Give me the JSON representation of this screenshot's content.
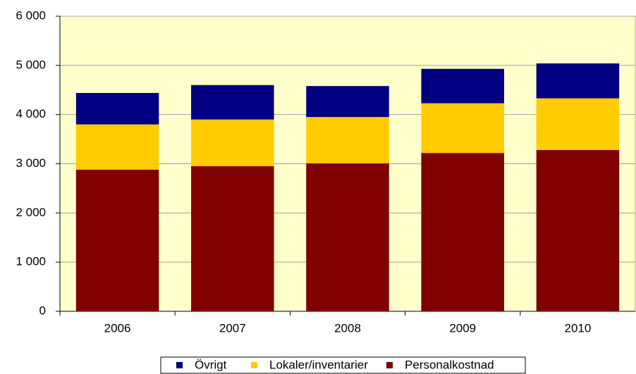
{
  "chart_data": {
    "type": "stacked_bar",
    "categories": [
      "2006",
      "2007",
      "2008",
      "2009",
      "2010"
    ],
    "series": [
      {
        "name": "Personalkostnad",
        "color": "#800000",
        "values": [
          2880,
          2950,
          3010,
          3220,
          3280
        ]
      },
      {
        "name": "Lokaler/inventarier",
        "color": "#ffcc00",
        "values": [
          920,
          950,
          940,
          1010,
          1050
        ]
      },
      {
        "name": "Övrigt",
        "color": "#000080",
        "values": [
          640,
          700,
          630,
          700,
          710
        ]
      }
    ],
    "ylim": [
      0,
      6000
    ],
    "yticks": [
      0,
      {
        "value": 1000,
        "label": "1 000"
      },
      {
        "value": 2000,
        "label": "2 000"
      },
      {
        "value": 3000,
        "label": "3 000"
      },
      {
        "value": 4000,
        "label": "4 000"
      },
      {
        "value": 5000,
        "label": "5 000"
      },
      {
        "value": 6000,
        "label": "6 000"
      }
    ],
    "grid": true
  }
}
